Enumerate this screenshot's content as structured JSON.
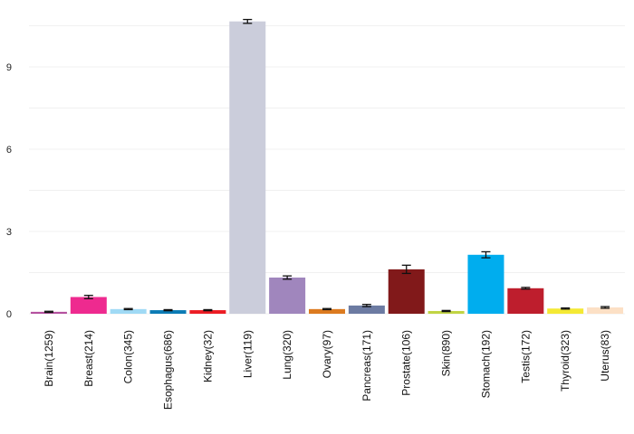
{
  "chart_data": {
    "type": "bar",
    "title": "",
    "xlabel": "",
    "ylabel": "",
    "ylim": [
      0,
      10.8
    ],
    "yticks": [
      0,
      3,
      6,
      9
    ],
    "grid": true,
    "categories": [
      "Brain(1259)",
      "Breast(214)",
      "Colon(345)",
      "Esophagus(686)",
      "Kidney(32)",
      "Liver(119)",
      "Lung(320)",
      "Ovary(97)",
      "Pancreas(171)",
      "Prostate(106)",
      "Skin(890)",
      "Stomach(192)",
      "Testis(172)",
      "Thyroid(323)",
      "Uterus(83)"
    ],
    "values": [
      0.07,
      0.61,
      0.17,
      0.13,
      0.13,
      10.66,
      1.32,
      0.17,
      0.3,
      1.62,
      0.1,
      2.15,
      0.93,
      0.19,
      0.23
    ],
    "errors": [
      0.02,
      0.06,
      0.02,
      0.02,
      0.02,
      0.07,
      0.06,
      0.02,
      0.04,
      0.15,
      0.02,
      0.11,
      0.03,
      0.02,
      0.03
    ],
    "colors": [
      "#b5519f",
      "#ee2a8f",
      "#a0daf5",
      "#0b7bb5",
      "#ec1c24",
      "#cbcddb",
      "#a086bd",
      "#dc7b20",
      "#6c7ba2",
      "#81191a",
      "#c1d443",
      "#00adee",
      "#be1e2d",
      "#f4e934",
      "#fce0c5"
    ]
  }
}
